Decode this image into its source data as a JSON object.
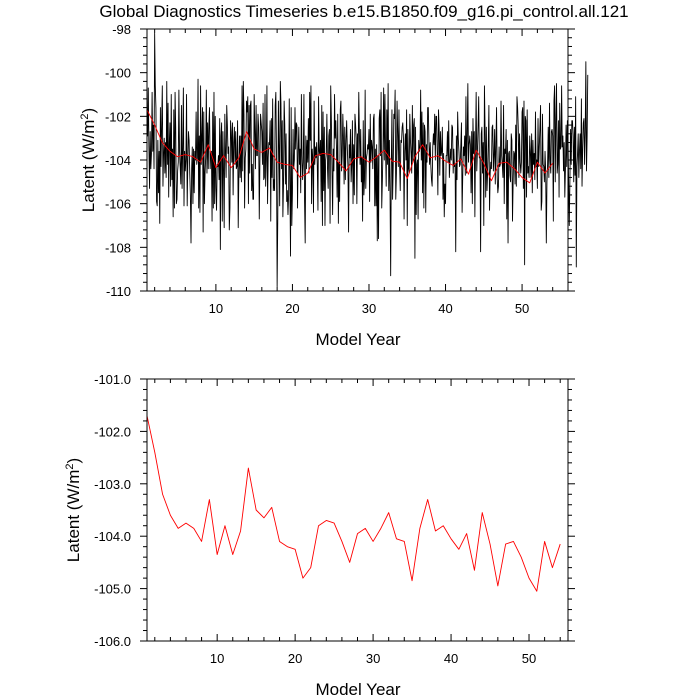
{
  "title": "Global Diagnostics Timeseries b.e15.B1850.f09_g16.pi_control.all.121",
  "colors": {
    "monthly": "#000000",
    "annual": "#ff0000",
    "frame": "#000000"
  },
  "chart_data": [
    {
      "type": "line",
      "xlabel": "Model Year",
      "ylabel": "Latent (W/m",
      "ylabel_sup": "2",
      "ylabel_close": ")",
      "xlim": [
        1,
        56
      ],
      "ylim": [
        -110,
        -98
      ],
      "xticks": [
        10,
        20,
        30,
        40,
        50
      ],
      "xtick_labels": [
        "10",
        "20",
        "30",
        "40",
        "50"
      ],
      "yticks": [
        -98,
        -100,
        -102,
        -104,
        -106,
        -108,
        -110
      ],
      "ytick_labels": [
        "-98",
        "-100",
        "-102",
        "-104",
        "-106",
        "-108",
        "-110"
      ],
      "series": [
        {
          "name": "monthly",
          "color": "#000000",
          "x_start": 1,
          "x_step": 0.0833333,
          "values": [
            -101.5,
            -102.9,
            -100.7,
            -103.4,
            -105.3,
            -102.7,
            -104.4,
            -103.7,
            -100.9,
            -103.6,
            -102.4,
            -104.4,
            -98.2,
            -100.6,
            -101.6,
            -105.9,
            -106.1,
            -103.1,
            -105.5,
            -103.6,
            -106.9,
            -101.6,
            -104.3,
            -102.3,
            -100.6,
            -105.2,
            -103.7,
            -103.0,
            -104.6,
            -103.2,
            -104.8,
            -100.4,
            -104.2,
            -101.4,
            -105.7,
            -103.2,
            -102.3,
            -105.2,
            -101.0,
            -104.9,
            -103.5,
            -106.6,
            -101.7,
            -106.2,
            -100.9,
            -102.5,
            -106.0,
            -105.8,
            -104.5,
            -104.1,
            -100.8,
            -103.6,
            -104.3,
            -105.1,
            -101.5,
            -105.3,
            -103.4,
            -100.7,
            -106.1,
            -103.6,
            -104.5,
            -104.0,
            -101.0,
            -106.1,
            -104.1,
            -102.7,
            -103.1,
            -104.6,
            -105.6,
            -107.8,
            -104.4,
            -103.4,
            -106.0,
            -103.5,
            -105.5,
            -103.6,
            -104.0,
            -101.8,
            -104.2,
            -103.9,
            -100.3,
            -106.2,
            -102.9,
            -106.4,
            -100.6,
            -104.2,
            -102.9,
            -101.6,
            -107.3,
            -101.8,
            -106.0,
            -104.6,
            -103.9,
            -100.8,
            -104.6,
            -102.3,
            -104.4,
            -102.4,
            -101.6,
            -104.4,
            -103.7,
            -103.6,
            -106.8,
            -101.8,
            -106.2,
            -100.9,
            -106.0,
            -102.0,
            -105.3,
            -106.3,
            -104.2,
            -104.3,
            -103.8,
            -104.9,
            -102.1,
            -108.1,
            -102.9,
            -102.3,
            -106.8,
            -102.7,
            -104.5,
            -107.1,
            -101.9,
            -103.6,
            -104.8,
            -101.5,
            -102.4,
            -103.7,
            -103.4,
            -107.2,
            -106.2,
            -102.2,
            -102.7,
            -104.1,
            -102.3,
            -105.6,
            -103.2,
            -102.5,
            -104.2,
            -102.7,
            -104.4,
            -104.3,
            -102.2,
            -107.1,
            -104.7,
            -102.9,
            -104.8,
            -102.9,
            -105.0,
            -100.6,
            -104.5,
            -100.4,
            -101.9,
            -106.2,
            -103.9,
            -103.5,
            -101.3,
            -101.8,
            -101.1,
            -106.0,
            -101.5,
            -104.6,
            -101.5,
            -101.3,
            -105.4,
            -104.2,
            -105.8,
            -105.8,
            -101.0,
            -102.6,
            -104.4,
            -101.5,
            -103.8,
            -103.8,
            -101.9,
            -102.5,
            -106.7,
            -104.1,
            -101.9,
            -102.3,
            -102.7,
            -104.2,
            -101.4,
            -104.9,
            -104.8,
            -101.0,
            -105.2,
            -104.0,
            -100.6,
            -106.0,
            -103.9,
            -103.2,
            -103.3,
            -102.2,
            -106.8,
            -102.1,
            -104.8,
            -101.2,
            -105.4,
            -104.9,
            -105.4,
            -101.5,
            -100.9,
            -103.7,
            -109.8,
            -106.7,
            -101.3,
            -103.3,
            -106.1,
            -100.4,
            -101.4,
            -104.4,
            -102.2,
            -106.6,
            -105.1,
            -101.3,
            -102.4,
            -105.1,
            -102.8,
            -105.9,
            -105.4,
            -106.5,
            -105.6,
            -101.2,
            -105.0,
            -108.4,
            -101.6,
            -107.0,
            -105.5,
            -102.6,
            -104.4,
            -104.0,
            -101.6,
            -103.5,
            -102.3,
            -102.4,
            -106.2,
            -103.6,
            -102.5,
            -104.2,
            -103.5,
            -105.5,
            -101.0,
            -103.8,
            -104.9,
            -104.1,
            -101.0,
            -105.9,
            -107.8,
            -102.9,
            -104.4,
            -103.1,
            -104.1,
            -102.1,
            -104.6,
            -100.9,
            -103.1,
            -100.6,
            -106.0,
            -103.5,
            -104.0,
            -106.4,
            -101.3,
            -104.2,
            -103.4,
            -103.9,
            -103.2,
            -104.3,
            -106.3,
            -101.1,
            -103.6,
            -103.8,
            -103.1,
            -105.9,
            -101.5,
            -107.0,
            -101.8,
            -105.4,
            -102.5,
            -107.0,
            -104.0,
            -103.7,
            -101.9,
            -104.4,
            -105.3,
            -102.9,
            -102.6,
            -106.9,
            -100.6,
            -102.1,
            -104.4,
            -106.5,
            -103.5,
            -104.5,
            -101.0,
            -103.0,
            -102.2,
            -103.4,
            -105.7,
            -101.9,
            -106.9,
            -104.1,
            -105.9,
            -101.7,
            -101.3,
            -104.5,
            -103.8,
            -101.9,
            -103.0,
            -105.1,
            -102.5,
            -104.9,
            -103.1,
            -102.2,
            -103.4,
            -104.3,
            -107.3,
            -103.3,
            -103.9,
            -102.6,
            -105.0,
            -104.2,
            -102.2,
            -106.0,
            -103.3,
            -105.6,
            -101.9,
            -102.4,
            -103.0,
            -106.0,
            -102.8,
            -103.9,
            -100.9,
            -102.8,
            -104.2,
            -102.6,
            -105.0,
            -103.9,
            -106.8,
            -102.2,
            -105.6,
            -104.9,
            -100.8,
            -105.3,
            -103.9,
            -103.7,
            -103.3,
            -103.5,
            -102.6,
            -105.9,
            -101.9,
            -104.1,
            -103.1,
            -103.4,
            -104.4,
            -102.1,
            -101.9,
            -106.1,
            -103.5,
            -106.1,
            -103.3,
            -107.7,
            -103.8,
            -107.6,
            -102.1,
            -101.7,
            -103.8,
            -100.9,
            -106.2,
            -104.9,
            -103.5,
            -100.7,
            -104.0,
            -101.0,
            -103.6,
            -105.2,
            -101.7,
            -104.2,
            -100.5,
            -105.4,
            -103.1,
            -105.4,
            -109.3,
            -104.1,
            -101.7,
            -105.8,
            -104.3,
            -101.9,
            -102.1,
            -100.8,
            -105.8,
            -104.6,
            -101.3,
            -102.7,
            -104.3,
            -101.7,
            -104.2,
            -105.4,
            -103.1,
            -103.2,
            -102.5,
            -102.3,
            -103.0,
            -106.7,
            -103.6,
            -102.8,
            -104.0,
            -101.7,
            -107.0,
            -102.6,
            -104.4,
            -104.6,
            -101.9,
            -103.1,
            -103.7,
            -104.6,
            -101.5,
            -104.1,
            -102.4,
            -102.1,
            -108.5,
            -102.5,
            -106.5,
            -104.2,
            -104.0,
            -106.7,
            -103.1,
            -103.6,
            -103.4,
            -100.8,
            -104.0,
            -101.8,
            -105.5,
            -102.3,
            -106.2,
            -102.4,
            -102.7,
            -106.4,
            -103.3,
            -104.1,
            -101.6,
            -101.6,
            -103.2,
            -104.2,
            -103.2,
            -104.3,
            -104.9,
            -105.2,
            -103.4,
            -102.8,
            -103.3,
            -101.9,
            -104.0,
            -102.0,
            -102.0,
            -103.6,
            -105.6,
            -101.7,
            -102.6,
            -104.7,
            -102.7,
            -103.8,
            -103.6,
            -102.5,
            -105.8,
            -103.7,
            -106.6,
            -105.1,
            -106.0,
            -103.8,
            -103.8,
            -102.7,
            -104.1,
            -102.2,
            -104.8,
            -104.1,
            -103.5,
            -104.0,
            -102.4,
            -102.5,
            -104.6,
            -103.5,
            -104.3,
            -104.2,
            -108.2,
            -102.9,
            -104.9,
            -101.8,
            -103.0,
            -103.6,
            -104.3,
            -104.2,
            -103.3,
            -102.3,
            -106.4,
            -104.7,
            -103.4,
            -103.8,
            -102.9,
            -104.7,
            -101.1,
            -104.6,
            -102.9,
            -100.5,
            -104.1,
            -103.3,
            -102.9,
            -103.3,
            -105.5,
            -102.7,
            -106.0,
            -102.1,
            -103.7,
            -102.7,
            -106.6,
            -103.5,
            -100.9,
            -104.5,
            -103.6,
            -102.5,
            -101.1,
            -103.9,
            -103.9,
            -108.2,
            -102.8,
            -102.5,
            -104.6,
            -103.2,
            -107.0,
            -100.6,
            -102.6,
            -105.7,
            -102.5,
            -105.4,
            -104.6,
            -103.3,
            -101.5,
            -106.3,
            -104.6,
            -104.1,
            -104.4,
            -102.5,
            -102.4,
            -104.5,
            -103.8,
            -102.6,
            -105.1,
            -103.3,
            -101.6,
            -104.8,
            -105.5,
            -105.2,
            -103.4,
            -104.3,
            -104.2,
            -101.3,
            -103.8,
            -104.2,
            -104.8,
            -101.5,
            -106.0,
            -103.5,
            -103.7,
            -102.6,
            -106.7,
            -103.1,
            -107.8,
            -103.7,
            -103.6,
            -104.7,
            -105.0,
            -102.8,
            -103.1,
            -106.8,
            -105.0,
            -103.6,
            -103.7,
            -105.1,
            -102.4,
            -105.2,
            -101.1,
            -101.6,
            -102.5,
            -104.8,
            -102.8,
            -104.1,
            -104.6,
            -104.1,
            -101.8,
            -101.6,
            -105.3,
            -101.3,
            -108.8,
            -102.0,
            -102.2,
            -105.7,
            -101.7,
            -104.6,
            -104.3,
            -104.8,
            -102.9,
            -103.6,
            -104.8,
            -102.8,
            -105.5,
            -103.1,
            -104.2,
            -103.7,
            -104.9,
            -101.8,
            -104.3,
            -104.0,
            -105.3,
            -102.1,
            -104.3,
            -103.4,
            -102.5,
            -101.5,
            -106.3,
            -105.9,
            -101.9,
            -104.2,
            -104.3,
            -105.0,
            -103.6,
            -104.5,
            -107.8,
            -105.0,
            -104.2,
            -102.5,
            -104.8,
            -101.4,
            -104.0,
            -104.6,
            -102.7,
            -102.6,
            -102.9,
            -106.8,
            -101.3,
            -100.6,
            -105.0,
            -102.1,
            -100.5,
            -104.6,
            -104.2,
            -102.2,
            -105.7,
            -101.4,
            -103.5,
            -103.4,
            -100.6,
            -103.4,
            -102.9,
            -104.5,
            -103.2,
            -105.7,
            -104.4,
            -102.4,
            -104.3,
            -102.2,
            -103.0,
            -105.1,
            -107.0,
            -104.9,
            -102.6,
            -104.2,
            -102.2,
            -102.2,
            -102.9,
            -105.0,
            -102.5,
            -104.7,
            -101.1,
            -108.9,
            -104.3,
            -103.7,
            -102.8,
            -104.8,
            -103.6,
            -102.8,
            -104.4,
            -101.2,
            -105.2,
            -103.5,
            -102.3,
            -102.1,
            -104.2,
            -102.7,
            -99.5,
            -104.5,
            -102.9,
            -100.1
          ]
        },
        {
          "name": "annual",
          "color": "#ff0000",
          "x_start": 1,
          "x_step": 1,
          "values": [
            -101.7,
            -102.4,
            -103.2,
            -103.6,
            -103.85,
            -103.75,
            -103.85,
            -104.1,
            -103.3,
            -104.35,
            -103.8,
            -104.35,
            -103.9,
            -102.7,
            -103.5,
            -103.65,
            -103.45,
            -104.1,
            -104.2,
            -104.25,
            -104.8,
            -104.6,
            -103.8,
            -103.7,
            -103.75,
            -104.1,
            -104.5,
            -103.95,
            -103.85,
            -104.1,
            -103.85,
            -103.55,
            -104.05,
            -104.1,
            -104.85,
            -103.85,
            -103.3,
            -103.9,
            -103.8,
            -104.05,
            -104.25,
            -103.95,
            -104.65,
            -103.55,
            -104.15,
            -104.95,
            -104.15,
            -104.1,
            -104.4,
            -104.8,
            -105.05,
            -104.1,
            -104.6,
            -104.15
          ]
        }
      ]
    },
    {
      "type": "line",
      "xlabel": "Model Year",
      "ylabel": "Latent (W/m",
      "ylabel_sup": "2",
      "ylabel_close": ")",
      "xlim": [
        1,
        55
      ],
      "ylim": [
        -106,
        -101
      ],
      "xticks": [
        10,
        20,
        30,
        40,
        50
      ],
      "xtick_labels": [
        "10",
        "20",
        "30",
        "40",
        "50"
      ],
      "yticks": [
        -101,
        -102,
        -103,
        -104,
        -105,
        -106
      ],
      "ytick_labels": [
        "-101.0",
        "-102.0",
        "-103.0",
        "-104.0",
        "-105.0",
        "-106.0"
      ],
      "series": [
        {
          "name": "annual",
          "color": "#ff0000",
          "x_start": 1,
          "x_step": 1,
          "values": [
            -101.7,
            -102.4,
            -103.2,
            -103.6,
            -103.85,
            -103.75,
            -103.85,
            -104.1,
            -103.3,
            -104.35,
            -103.8,
            -104.35,
            -103.9,
            -102.7,
            -103.5,
            -103.65,
            -103.45,
            -104.1,
            -104.2,
            -104.25,
            -104.8,
            -104.6,
            -103.8,
            -103.7,
            -103.75,
            -104.1,
            -104.5,
            -103.95,
            -103.85,
            -104.1,
            -103.85,
            -103.55,
            -104.05,
            -104.1,
            -104.85,
            -103.85,
            -103.3,
            -103.9,
            -103.8,
            -104.05,
            -104.25,
            -103.95,
            -104.65,
            -103.55,
            -104.15,
            -104.95,
            -104.15,
            -104.1,
            -104.4,
            -104.8,
            -105.05,
            -104.1,
            -104.6,
            -104.15
          ]
        }
      ]
    }
  ]
}
